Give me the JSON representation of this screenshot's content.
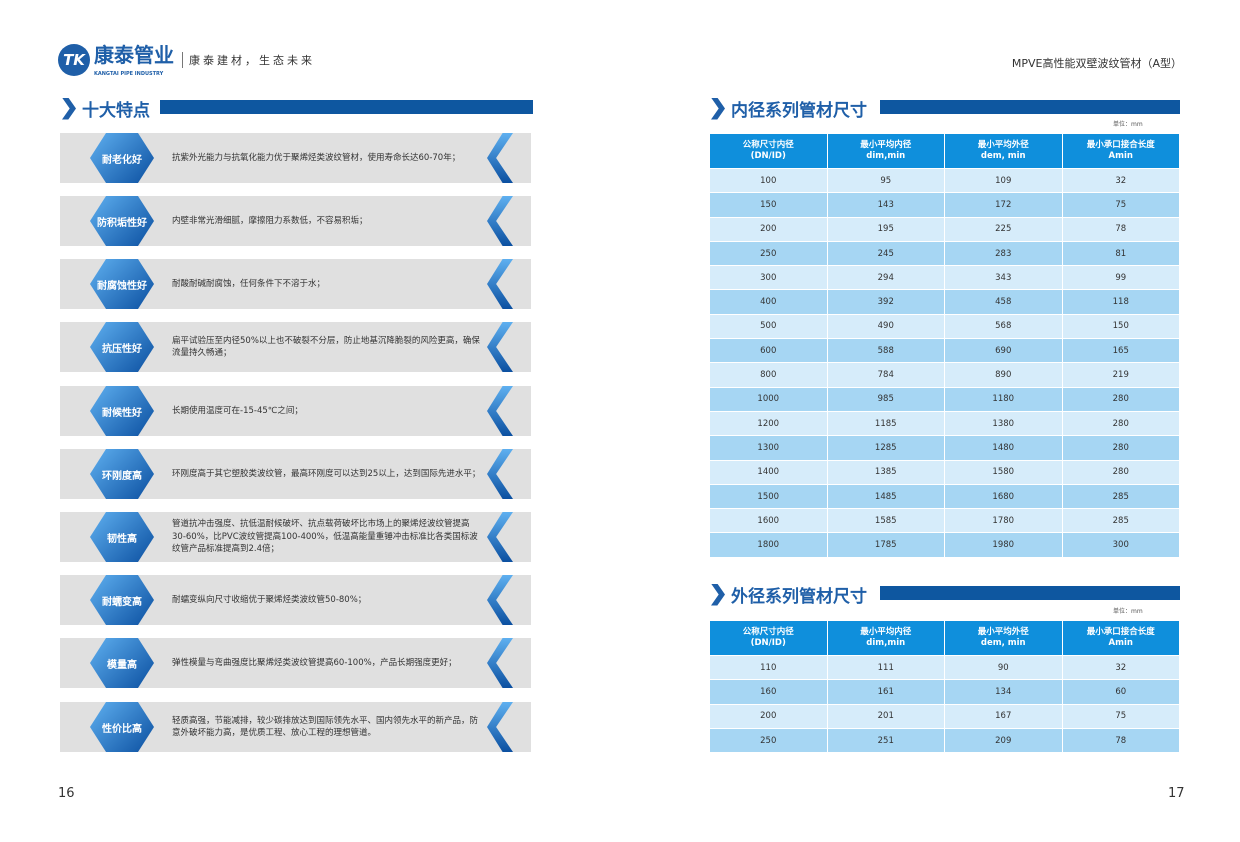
{
  "header": {
    "logo_mark": "TK",
    "logo_cn": "康泰管业",
    "logo_en": "KANGTAI PIPE INDUSTRY",
    "slogan": "康泰建材，生态未来",
    "doc_title": "MPVE高性能双壁波纹管材（A型）"
  },
  "left": {
    "title": "十大特点",
    "features": [
      {
        "name": "耐老化好",
        "desc": "抗紫外光能力与抗氧化能力优于聚烯烃类波纹管材，使用寿命长达60-70年；"
      },
      {
        "name": "防积垢性好",
        "desc": "内壁非常光滑细腻，摩擦阻力系数低，不容易积垢；"
      },
      {
        "name": "耐腐蚀性好",
        "desc": "耐酸耐碱耐腐蚀，任何条件下不溶于水；"
      },
      {
        "name": "抗压性好",
        "desc": "扁平试验压至内径50%以上也不破裂不分层，防止地基沉降脆裂的风险更高，确保流量持久畅通；"
      },
      {
        "name": "耐候性好",
        "desc": "长期使用温度可在-15-45℃之间；"
      },
      {
        "name": "环刚度高",
        "desc": "环刚度高于其它塑胶类波纹管，最高环刚度可以达到25以上，达到国际先进水平；"
      },
      {
        "name": "韧性高",
        "desc": "管道抗冲击强度、抗低温耐候破坏、抗点载荷破坏比市场上的聚烯烃波纹管提高30-60%，比PVC波纹管提高100-400%，低温高能量重锤冲击标准比各类国标波纹管产品标准提高到2.4倍；"
      },
      {
        "name": "耐蠕变高",
        "desc": "耐蠕变纵向尺寸收缩优于聚烯烃类波纹管50-80%；"
      },
      {
        "name": "模量高",
        "desc": "弹性模量与弯曲强度比聚烯烃类波纹管提高60-100%，产品长期强度更好；"
      },
      {
        "name": "性价比高",
        "desc": "轻质高强，节能减排，较少碳排放达到国际领先水平、国内领先水平的新产品，防意外破坏能力高，是优质工程、放心工程的理想管道。"
      }
    ],
    "page_number": "16"
  },
  "right": {
    "inner": {
      "title": "内径系列管材尺寸",
      "unit": "单位：mm",
      "headers": [
        [
          "公称尺寸内径",
          "(DN/ID)"
        ],
        [
          "最小平均内径",
          "dim,min"
        ],
        [
          "最小平均外径",
          "dem, min"
        ],
        [
          "最小承口接合长度",
          "Amin"
        ]
      ],
      "rows": [
        [
          "100",
          "95",
          "109",
          "32"
        ],
        [
          "150",
          "143",
          "172",
          "75"
        ],
        [
          "200",
          "195",
          "225",
          "78"
        ],
        [
          "250",
          "245",
          "283",
          "81"
        ],
        [
          "300",
          "294",
          "343",
          "99"
        ],
        [
          "400",
          "392",
          "458",
          "118"
        ],
        [
          "500",
          "490",
          "568",
          "150"
        ],
        [
          "600",
          "588",
          "690",
          "165"
        ],
        [
          "800",
          "784",
          "890",
          "219"
        ],
        [
          "1000",
          "985",
          "1180",
          "280"
        ],
        [
          "1200",
          "1185",
          "1380",
          "280"
        ],
        [
          "1300",
          "1285",
          "1480",
          "280"
        ],
        [
          "1400",
          "1385",
          "1580",
          "280"
        ],
        [
          "1500",
          "1485",
          "1680",
          "285"
        ],
        [
          "1600",
          "1585",
          "1780",
          "285"
        ],
        [
          "1800",
          "1785",
          "1980",
          "300"
        ]
      ]
    },
    "outer": {
      "title": "外径系列管材尺寸",
      "unit": "单位：mm",
      "headers": [
        [
          "公称尺寸内径",
          "(DN/ID)"
        ],
        [
          "最小平均内径",
          "dim,min"
        ],
        [
          "最小平均外径",
          "dem, min"
        ],
        [
          "最小承口接合长度",
          "Amin"
        ]
      ],
      "rows": [
        [
          "110",
          "111",
          "90",
          "32"
        ],
        [
          "160",
          "161",
          "134",
          "60"
        ],
        [
          "200",
          "201",
          "167",
          "75"
        ],
        [
          "250",
          "251",
          "209",
          "78"
        ]
      ]
    },
    "page_number": "17"
  },
  "colors": {
    "brand": "#1f5fa8",
    "header_cell": "#0f8fdc",
    "row_light": "#d6ecfa",
    "row_dark": "#a6d6f3"
  }
}
